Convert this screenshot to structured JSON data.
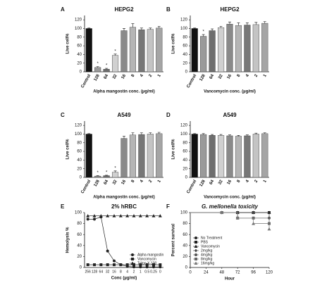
{
  "chart_data": [
    {
      "type": "bar",
      "panel": "A",
      "title": "HEPG2",
      "ylabel": "Live cell%",
      "xlabel": "Alpha mangostin conc. (µg/ml)",
      "categories": [
        "Control",
        "128",
        "64",
        "32",
        "16",
        "8",
        "4",
        "2",
        "1"
      ],
      "values": [
        100,
        10,
        6,
        38,
        95,
        103,
        97,
        98,
        101
      ],
      "errors": [
        1,
        2,
        2,
        3,
        5,
        8,
        4,
        3,
        4
      ],
      "significance": [
        null,
        "*",
        "*",
        "*",
        null,
        null,
        null,
        null,
        null
      ],
      "colors": [
        "#111111",
        "#9a9a9a",
        "#6e6e6e",
        "#d0d0d0",
        "#8a8a8a",
        "#b5b5b5",
        "#777777",
        "#c4c4c4",
        "#a5a5a5"
      ],
      "ylim": [
        0,
        130
      ],
      "yticks": [
        0,
        20,
        40,
        60,
        80,
        100,
        120
      ]
    },
    {
      "type": "bar",
      "panel": "B",
      "title": "HEPG2",
      "ylabel": "Live cell%",
      "xlabel": "Vancomycin conc. (µg/ml)",
      "categories": [
        "Control",
        "128",
        "64",
        "32",
        "16",
        "8",
        "4",
        "2",
        "1"
      ],
      "values": [
        100,
        82,
        95,
        102,
        110,
        107,
        108,
        109,
        112
      ],
      "errors": [
        1,
        4,
        4,
        3,
        5,
        6,
        5,
        5,
        4
      ],
      "significance": [
        null,
        "*",
        null,
        null,
        null,
        null,
        null,
        null,
        null
      ],
      "colors": [
        "#111111",
        "#9a9a9a",
        "#6e6e6e",
        "#d0d0d0",
        "#8a8a8a",
        "#b5b5b5",
        "#777777",
        "#c4c4c4",
        "#a5a5a5"
      ],
      "ylim": [
        0,
        130
      ],
      "yticks": [
        0,
        20,
        40,
        60,
        80,
        100,
        120
      ]
    },
    {
      "type": "bar",
      "panel": "C",
      "title": "A549",
      "ylabel": "Live cell%",
      "xlabel": "Alpha mangostin conc. (µg/ml)",
      "categories": [
        "Control",
        "128",
        "64",
        "32",
        "16",
        "8",
        "4",
        "2",
        "1"
      ],
      "values": [
        100,
        3,
        4,
        12,
        90,
        98,
        99,
        100,
        101
      ],
      "errors": [
        1,
        1,
        1,
        3,
        5,
        5,
        4,
        3,
        3
      ],
      "significance": [
        null,
        "*",
        "*",
        "*",
        null,
        null,
        null,
        null,
        null
      ],
      "colors": [
        "#111111",
        "#9a9a9a",
        "#6e6e6e",
        "#d0d0d0",
        "#8a8a8a",
        "#b5b5b5",
        "#777777",
        "#c4c4c4",
        "#a5a5a5"
      ],
      "ylim": [
        0,
        130
      ],
      "yticks": [
        0,
        20,
        40,
        60,
        80,
        100,
        120
      ]
    },
    {
      "type": "bar",
      "panel": "D",
      "title": "A549",
      "ylabel": "Live cell%",
      "xlabel": "Vancomycin conc. (µg/ml)",
      "categories": [
        "Control",
        "128",
        "64",
        "32",
        "16",
        "8",
        "4",
        "2",
        "1"
      ],
      "values": [
        100,
        99,
        97,
        97,
        96,
        95,
        96,
        100,
        101
      ],
      "errors": [
        1,
        2,
        2,
        2,
        2,
        2,
        2,
        2,
        2
      ],
      "significance": [
        null,
        null,
        null,
        null,
        null,
        null,
        null,
        null,
        null
      ],
      "colors": [
        "#111111",
        "#9a9a9a",
        "#6e6e6e",
        "#d0d0d0",
        "#8a8a8a",
        "#b5b5b5",
        "#777777",
        "#c4c4c4",
        "#a5a5a5"
      ],
      "ylim": [
        0,
        130
      ],
      "yticks": [
        0,
        20,
        40,
        60,
        80,
        100,
        120
      ]
    },
    {
      "type": "line",
      "panel": "E",
      "title": "2% hRBC",
      "ylabel": "Hemolysis %",
      "xlabel": "Conc (µg/ml)",
      "categories": [
        "256",
        "128",
        "64",
        "32",
        "16",
        "8",
        "4",
        "2",
        "1",
        "0.5",
        "0.25",
        "0"
      ],
      "series": [
        {
          "name": "Alpha mangostin",
          "color": "#222222",
          "marker": "circle",
          "values": [
            88,
            88,
            92,
            30,
            12,
            5,
            2,
            1,
            1,
            1,
            1,
            1
          ]
        },
        {
          "name": "Vancomycin",
          "color": "#222222",
          "marker": "square",
          "values": [
            5,
            5,
            5,
            5,
            5,
            5,
            5,
            5,
            5,
            5,
            5,
            5
          ]
        },
        {
          "name": "Triton X-100",
          "color": "#222222",
          "marker": "triangle",
          "values": [
            94,
            94,
            94,
            94,
            94,
            94,
            94,
            94,
            94,
            94,
            94,
            94
          ]
        }
      ],
      "ylim": [
        0,
        100
      ],
      "yticks": [
        0,
        20,
        40,
        60,
        80,
        100
      ],
      "legend": "lower right"
    },
    {
      "type": "step",
      "panel": "F",
      "title": "G. mellonella toxicity",
      "ylabel": "Percent survival",
      "xlabel": "Hour",
      "x": [
        0,
        24,
        48,
        72,
        96,
        120
      ],
      "series": [
        {
          "name": "No Treatment",
          "color": "#222222",
          "marker": "circle",
          "values": [
            100,
            100,
            100,
            100,
            100,
            100
          ]
        },
        {
          "name": "PBS",
          "color": "#222222",
          "marker": "square",
          "values": [
            100,
            100,
            100,
            100,
            100,
            100
          ]
        },
        {
          "name": "Vancomycin",
          "color": "#222222",
          "marker": "triangle",
          "values": [
            100,
            100,
            100,
            100,
            100,
            100
          ]
        },
        {
          "name": "2mg/kg",
          "color": "#444444",
          "marker": "diamond",
          "values": [
            100,
            100,
            100,
            100,
            100,
            90
          ]
        },
        {
          "name": "4mg/kg",
          "color": "#555555",
          "marker": "circle",
          "values": [
            100,
            100,
            100,
            90,
            90,
            90
          ]
        },
        {
          "name": "8mg/kg",
          "color": "#666666",
          "marker": "square",
          "values": [
            100,
            100,
            100,
            90,
            90,
            80
          ]
        },
        {
          "name": "16mg/kg",
          "color": "#777777",
          "marker": "triangle",
          "values": [
            100,
            100,
            100,
            90,
            80,
            70
          ]
        }
      ],
      "xlim": [
        0,
        120
      ],
      "xticks": [
        0,
        24,
        48,
        72,
        96,
        120
      ],
      "ylim": [
        0,
        100
      ],
      "yticks": [
        0,
        20,
        40,
        60,
        80,
        100
      ],
      "legend": "lower left"
    }
  ]
}
